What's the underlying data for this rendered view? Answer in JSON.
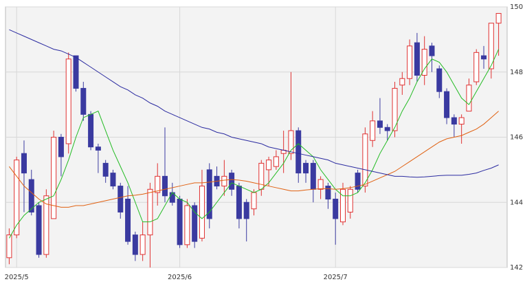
{
  "chart_data": {
    "type": "candlestick",
    "categories": [
      null,
      "2025/5",
      null,
      null,
      null,
      null,
      null,
      null,
      null,
      null,
      null,
      null,
      null,
      null,
      null,
      null,
      null,
      null,
      null,
      null,
      null,
      null,
      null,
      "2025/6",
      null,
      null,
      null,
      null,
      null,
      null,
      null,
      null,
      null,
      null,
      null,
      null,
      null,
      null,
      null,
      null,
      null,
      null,
      null,
      null,
      "2025/7",
      null,
      null,
      null,
      null,
      null,
      null,
      null,
      null,
      null,
      null,
      null,
      null,
      null,
      null,
      null,
      null,
      null,
      null,
      null,
      null,
      null,
      null
    ],
    "open": [
      142.3,
      143.0,
      145.5,
      144.7,
      143.9,
      142.4,
      143.5,
      146.0,
      145.8,
      148.5,
      147.5,
      146.7,
      145.7,
      145.2,
      144.9,
      144.5,
      144.1,
      143.0,
      142.4,
      143.0,
      144.3,
      144.8,
      144.3,
      144.1,
      142.7,
      143.9,
      142.9,
      145.0,
      144.8,
      144.5,
      144.9,
      144.5,
      144.0,
      143.8,
      144.4,
      145.0,
      145.1,
      145.5,
      145.5,
      146.2,
      145.2,
      145.2,
      144.4,
      144.5,
      144.1,
      143.4,
      143.7,
      144.9,
      144.5,
      145.9,
      146.5,
      146.3,
      146.2,
      147.6,
      147.8,
      148.9,
      147.9,
      148.8,
      148.1,
      147.4,
      146.6,
      146.4,
      146.8,
      147.7,
      148.5,
      148.1,
      149.5
    ],
    "high": [
      143.2,
      145.4,
      145.9,
      145.0,
      144.0,
      144.4,
      146.2,
      146.1,
      148.6,
      148.5,
      147.7,
      146.8,
      145.8,
      145.3,
      145.0,
      144.6,
      144.5,
      143.1,
      143.4,
      144.6,
      145.2,
      146.3,
      144.6,
      144.2,
      144.1,
      144.0,
      145.0,
      145.2,
      145.1,
      145.3,
      145.0,
      144.6,
      144.1,
      144.4,
      145.3,
      145.4,
      145.6,
      146.2,
      148.0,
      146.3,
      145.3,
      145.3,
      144.8,
      144.6,
      144.3,
      144.6,
      144.5,
      145.0,
      146.3,
      146.8,
      147.2,
      146.4,
      147.7,
      148.0,
      149.0,
      149.2,
      149.1,
      148.9,
      148.2,
      147.5,
      146.7,
      146.7,
      147.8,
      148.7,
      148.8,
      149.5,
      149.8
    ],
    "low": [
      142.1,
      142.9,
      143.7,
      143.6,
      142.3,
      142.3,
      143.5,
      144.8,
      145.5,
      147.4,
      146.5,
      145.6,
      144.9,
      144.6,
      144.4,
      143.5,
      142.7,
      142.2,
      142.2,
      142.0,
      143.9,
      144.0,
      143.9,
      142.6,
      142.6,
      142.6,
      142.8,
      143.2,
      144.4,
      144.2,
      144.2,
      143.2,
      142.8,
      143.6,
      144.2,
      144.5,
      145.0,
      144.9,
      145.3,
      144.6,
      144.6,
      144.0,
      144.1,
      143.8,
      142.7,
      143.3,
      143.5,
      144.3,
      144.3,
      145.7,
      146.1,
      145.9,
      146.0,
      147.3,
      147.6,
      147.7,
      147.6,
      148.0,
      147.2,
      146.4,
      146.0,
      145.8,
      146.8,
      147.6,
      148.1,
      147.8,
      148.5
    ],
    "close": [
      143.0,
      145.3,
      144.9,
      143.7,
      142.4,
      144.2,
      146.0,
      145.4,
      148.4,
      147.5,
      146.7,
      145.7,
      145.6,
      144.8,
      144.5,
      143.7,
      142.8,
      142.4,
      143.0,
      144.4,
      144.8,
      144.2,
      144.0,
      142.7,
      143.9,
      142.8,
      144.5,
      143.5,
      144.5,
      144.8,
      144.4,
      143.5,
      143.5,
      144.3,
      145.2,
      145.3,
      145.4,
      145.6,
      146.2,
      144.9,
      144.9,
      144.4,
      144.7,
      144.1,
      143.5,
      144.4,
      144.4,
      144.4,
      146.1,
      146.5,
      146.3,
      146.2,
      147.5,
      147.8,
      148.8,
      147.9,
      148.7,
      148.5,
      147.4,
      146.6,
      146.4,
      146.6,
      147.6,
      148.6,
      148.4,
      149.5,
      149.8
    ],
    "up_color": "#e03030",
    "down_color": "#3a3aa0",
    "series": [
      {
        "color": "#22bb22",
        "values": [
          142.9,
          143.3,
          143.6,
          143.8,
          144.0,
          144.1,
          144.2,
          144.7,
          145.3,
          146.0,
          146.6,
          146.7,
          146.8,
          146.2,
          145.6,
          145.1,
          144.6,
          144.0,
          143.4,
          143.4,
          143.5,
          143.9,
          144.3,
          144.1,
          144.0,
          143.7,
          143.5,
          143.7,
          144.0,
          144.3,
          144.6,
          144.5,
          144.4,
          144.3,
          144.4,
          144.6,
          144.9,
          145.2,
          145.6,
          145.8,
          145.6,
          145.4,
          145.0,
          144.7,
          144.4,
          144.2,
          144.2,
          144.3,
          144.6,
          145.0,
          145.5,
          145.9,
          146.3,
          146.8,
          147.2,
          147.7,
          148.1,
          148.4,
          148.3,
          148.0,
          147.6,
          147.2,
          147.0,
          147.4,
          147.8,
          148.2,
          148.7
        ]
      },
      {
        "color": "#e06010",
        "values": [
          145.1,
          144.8,
          144.5,
          144.3,
          144.1,
          143.95,
          143.9,
          143.85,
          143.85,
          143.9,
          143.9,
          143.95,
          144.0,
          144.05,
          144.1,
          144.15,
          144.2,
          144.22,
          144.25,
          144.3,
          144.35,
          144.4,
          144.45,
          144.5,
          144.55,
          144.6,
          144.6,
          144.62,
          144.65,
          144.68,
          144.7,
          144.68,
          144.65,
          144.6,
          144.55,
          144.5,
          144.45,
          144.4,
          144.35,
          144.35,
          144.38,
          144.4,
          144.42,
          144.42,
          144.4,
          144.42,
          144.45,
          144.5,
          144.55,
          144.65,
          144.75,
          144.85,
          144.95,
          145.1,
          145.25,
          145.4,
          145.55,
          145.7,
          145.85,
          145.95,
          146.0,
          146.05,
          146.15,
          146.25,
          146.4,
          146.6,
          146.8
        ]
      },
      {
        "color": "#2a2aa0",
        "values": [
          149.3,
          149.2,
          149.1,
          149.0,
          148.9,
          148.8,
          148.7,
          148.65,
          148.55,
          148.45,
          148.3,
          148.15,
          148.0,
          147.85,
          147.7,
          147.55,
          147.45,
          147.3,
          147.2,
          147.05,
          146.95,
          146.8,
          146.7,
          146.6,
          146.5,
          146.4,
          146.3,
          146.25,
          146.15,
          146.1,
          146.0,
          145.95,
          145.9,
          145.85,
          145.8,
          145.7,
          145.65,
          145.6,
          145.55,
          145.5,
          145.45,
          145.4,
          145.35,
          145.3,
          145.2,
          145.15,
          145.1,
          145.05,
          145.0,
          144.95,
          144.9,
          144.85,
          144.8,
          144.8,
          144.78,
          144.77,
          144.78,
          144.8,
          144.82,
          144.83,
          144.83,
          144.83,
          144.86,
          144.9,
          144.98,
          145.05,
          145.15
        ]
      }
    ],
    "ylim": [
      142,
      150
    ],
    "yticks": [
      142,
      144,
      146,
      148,
      150
    ],
    "grid": true
  }
}
